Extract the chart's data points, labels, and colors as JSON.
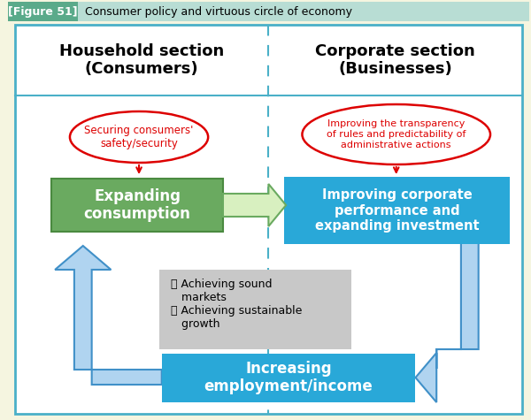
{
  "title_label": "[Figure 51]",
  "title_text": "Consumer policy and virtuous circle of economy",
  "title_label_bg": "#5aaa8a",
  "title_bg": "#b8ddd4",
  "fig_bg": "#f5f5e0",
  "outer_border_color": "#4ab0c8",
  "header_line_color": "#4ab0c8",
  "dashed_line_color": "#4ab0c8",
  "household_title": "Household section\n(Consumers)",
  "corporate_title": "Corporate section\n(Businesses)",
  "ellipse1_text": "Securing consumers'\nsafety/security",
  "ellipse1_color": "#dd0000",
  "ellipse2_text": "Improving the transparency\nof rules and predictability of\nadministrative actions",
  "ellipse2_color": "#dd0000",
  "box_expand_text": "Expanding\nconsumption",
  "box_expand_color": "#6aaa60",
  "box_expand_border": "#4a8a40",
  "box_improve_text": "Improving corporate\nperformance and\nexpanding investment",
  "box_improve_color": "#29a8d8",
  "box_increase_text": "Increasing\nemployment/income",
  "box_increase_color": "#29a8d8",
  "center_box_text": "・ Achieving sound\n   markets\n・ Achieving sustainable\n   growth",
  "center_box_bg": "#c8c8c8",
  "arrow_green_fill": "#d8f0c0",
  "arrow_green_border": "#6aaa60",
  "arrow_blue_fill": "#b0d4f0",
  "arrow_blue_border": "#4090c8",
  "red_arrow_color": "#dd0000",
  "white": "#ffffff",
  "black": "#000000"
}
